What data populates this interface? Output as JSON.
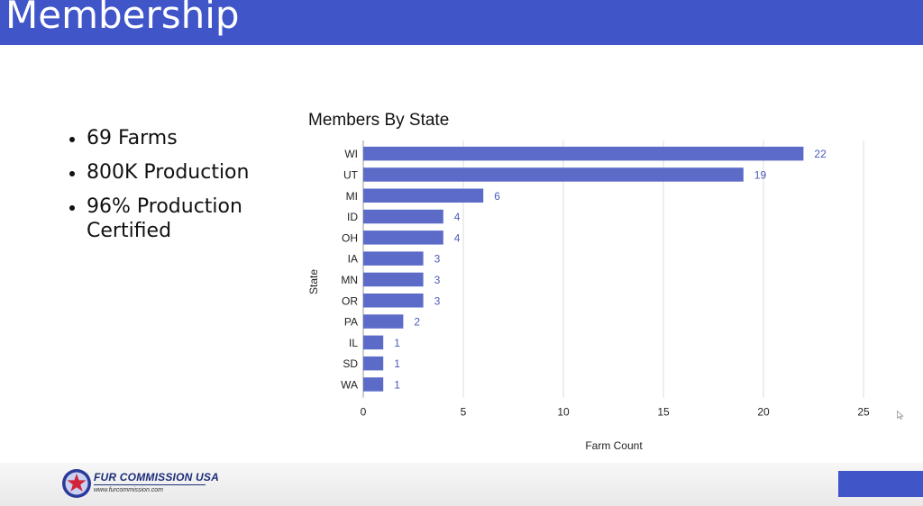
{
  "header": {
    "title": "Membership"
  },
  "bullets": [
    "69 Farms",
    "800K Production",
    "96% Production Certified"
  ],
  "chart_data": {
    "type": "bar",
    "orientation": "horizontal",
    "title": "Members By State",
    "xlabel": "Farm Count",
    "ylabel": "State",
    "categories": [
      "WI",
      "UT",
      "MI",
      "ID",
      "OH",
      "IA",
      "MN",
      "OR",
      "PA",
      "IL",
      "SD",
      "WA"
    ],
    "values": [
      22,
      19,
      6,
      4,
      4,
      3,
      3,
      3,
      2,
      1,
      1,
      1
    ],
    "xlim": [
      0,
      25
    ],
    "xticks": [
      0,
      5,
      10,
      15,
      20,
      25
    ],
    "grid": true,
    "data_labels": true,
    "colors": {
      "bar": "#5c6bc8",
      "label": "#4b5bb8",
      "grid": "#dddddd"
    }
  },
  "footer": {
    "logo_name": "FUR COMMISSION USA",
    "logo_url": "www.furcommission.com",
    "logo_icon": "seal-star-icon",
    "colors": {
      "accent": "#3f55c8",
      "logo": "#1d2e7a"
    }
  }
}
